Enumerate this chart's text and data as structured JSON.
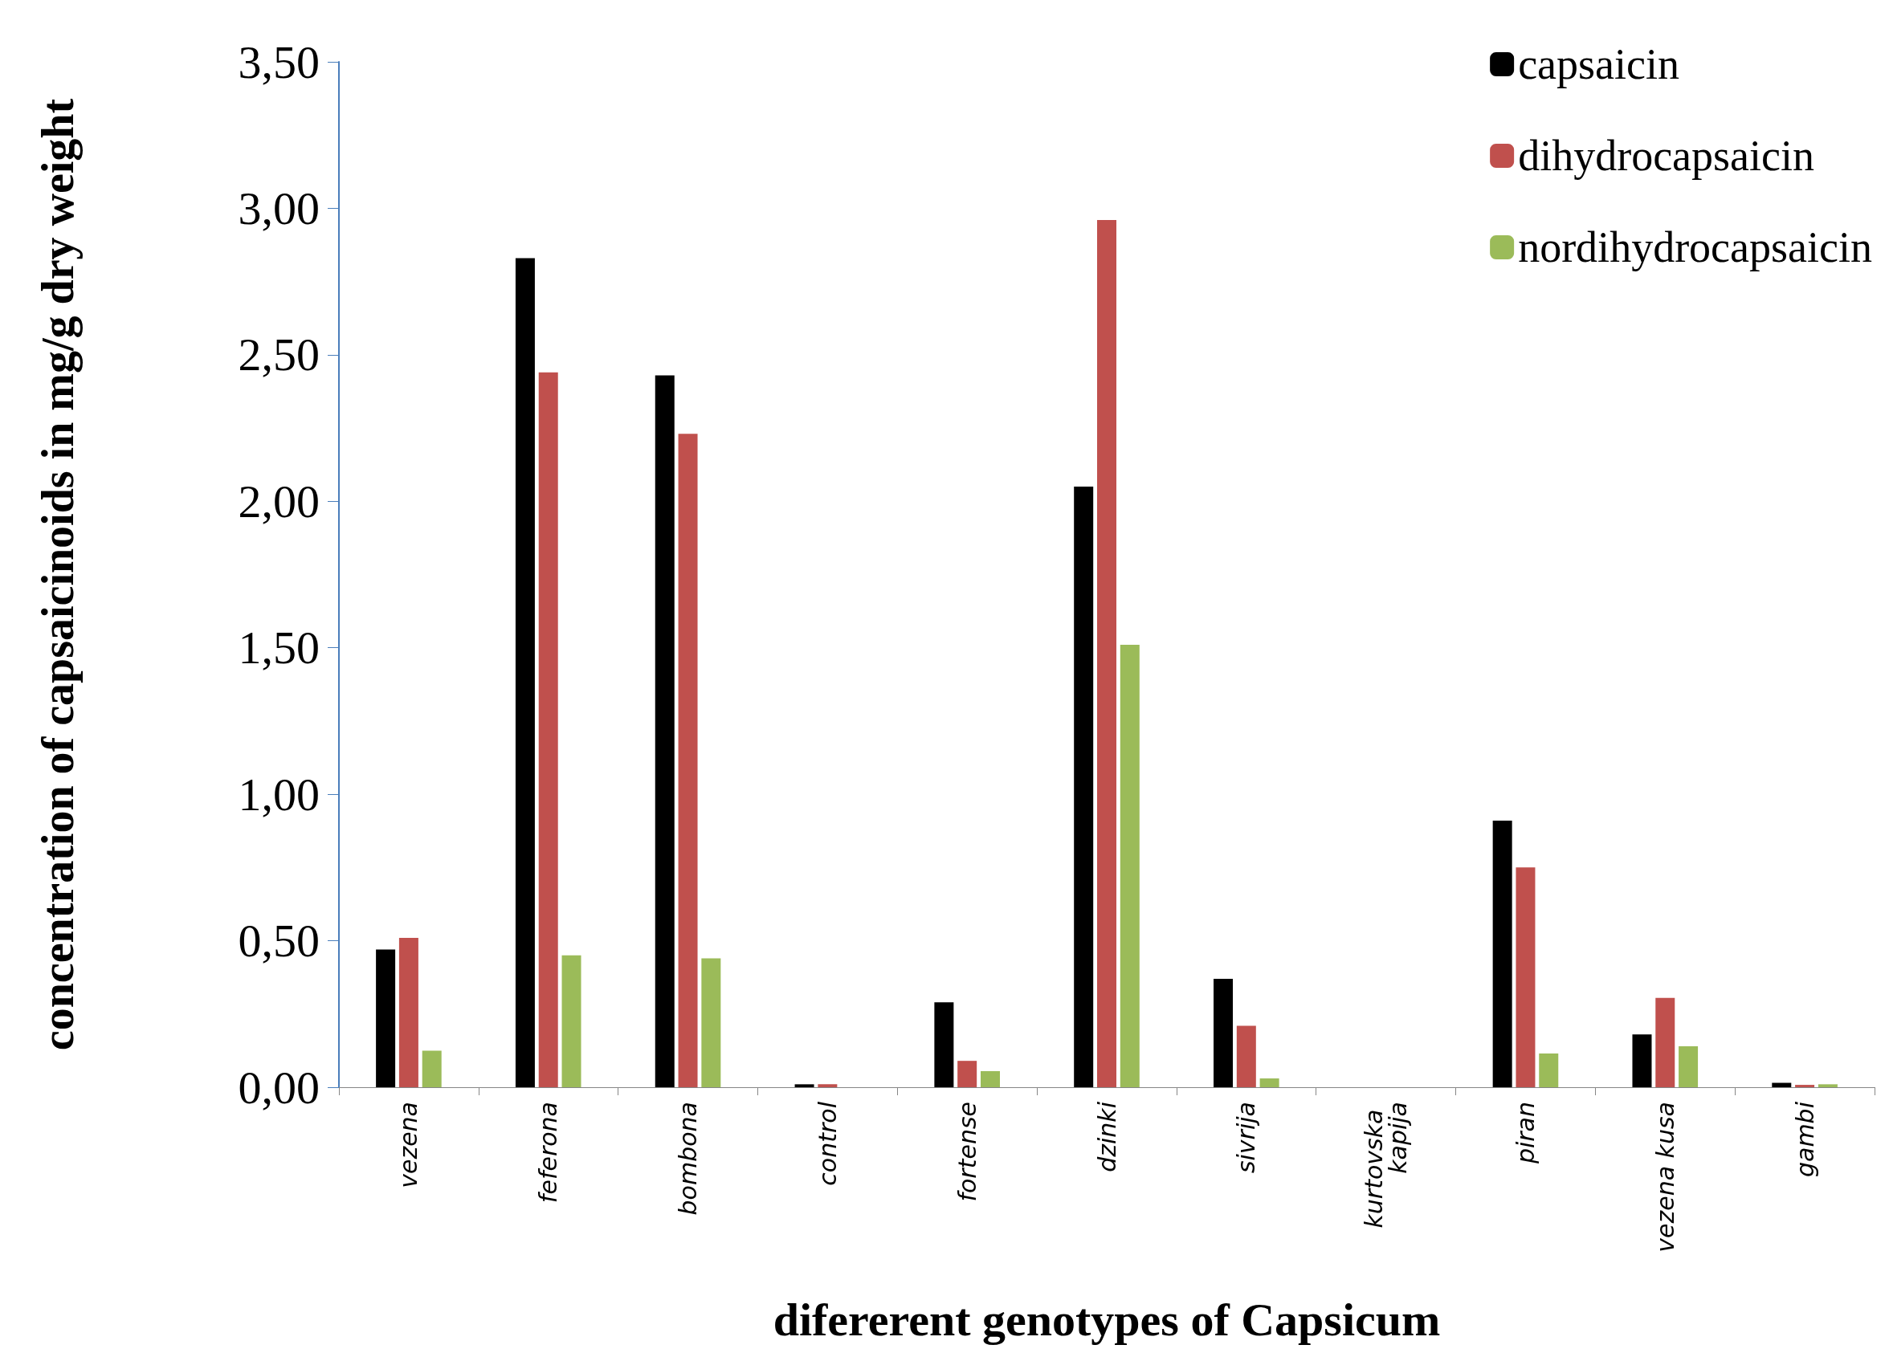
{
  "chart_data": {
    "type": "bar",
    "xlabel": "difererent genotypes of Capsicum",
    "ylabel": "concentration of capsaicinoids in mg/g dry weight",
    "categories": [
      "vezena",
      "feferona",
      "bombona",
      "control",
      "fortense",
      "dzinki",
      "sivrija",
      "kurtovska kapija",
      "piran",
      "vezena kusa",
      "gambi"
    ],
    "series": [
      {
        "name": "capsaicin",
        "color": "#000000",
        "values": [
          0.47,
          2.83,
          2.43,
          0.01,
          0.29,
          2.05,
          0.37,
          0,
          0.91,
          0.18,
          0.015
        ]
      },
      {
        "name": "dihydrocapsaicin",
        "color": "#c0504d",
        "values": [
          0.51,
          2.44,
          2.23,
          0.01,
          0.09,
          2.96,
          0.21,
          0,
          0.75,
          0.305,
          0.008
        ]
      },
      {
        "name": "nordihydrocapsaicin",
        "color": "#9bbb59",
        "values": [
          0.125,
          0.45,
          0.44,
          0,
          0.055,
          1.51,
          0.03,
          0,
          0.115,
          0.14,
          0.01
        ]
      }
    ],
    "ylim": [
      0,
      3.5
    ],
    "yticks": [
      {
        "value": 0,
        "label": "0,00"
      },
      {
        "value": 0.5,
        "label": "0,50"
      },
      {
        "value": 1,
        "label": "1,00"
      },
      {
        "value": 1.5,
        "label": "1,50"
      },
      {
        "value": 2,
        "label": "2,00"
      },
      {
        "value": 2.5,
        "label": "2,50"
      },
      {
        "value": 3,
        "label": "3,00"
      },
      {
        "value": 3.5,
        "label": "3,50"
      }
    ],
    "legend": "top right",
    "grid": false
  }
}
